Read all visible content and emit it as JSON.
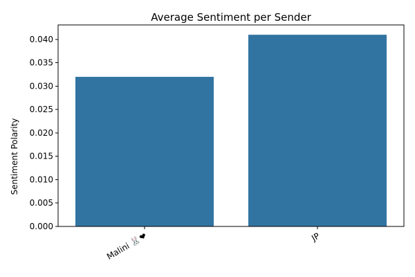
{
  "chart_data": {
    "type": "bar",
    "title": "Average Sentiment per Sender",
    "xlabel": "",
    "ylabel": "Sentiment Polarity",
    "categories": [
      "Malini 🐰❤",
      "JP"
    ],
    "values": [
      0.032,
      0.041
    ],
    "ylim": [
      0,
      0.0431
    ],
    "yticks": [
      "0.000",
      "0.005",
      "0.010",
      "0.015",
      "0.020",
      "0.025",
      "0.030",
      "0.035",
      "0.040"
    ],
    "ytick_values": [
      0,
      0.005,
      0.01,
      0.015,
      0.02,
      0.025,
      0.03,
      0.035,
      0.04
    ],
    "grid": false,
    "legend": "none",
    "bar_color": "#3274a1"
  }
}
